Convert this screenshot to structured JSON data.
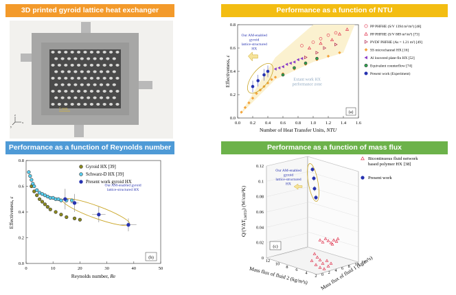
{
  "colors": {
    "orange": "#f39a2b",
    "yellow": "#f3bd12",
    "blue": "#4e9ad6",
    "green": "#6cb24a",
    "present": "#2632b0",
    "zone": "#fbf1cf"
  },
  "photo": {
    "title": "3D printed gyroid lattice heat exchanger",
    "scale_label": "5 mm",
    "axis_x": "x",
    "axis_y": "y",
    "axis_z": "z"
  },
  "chart_data": [
    {
      "type": "scatter",
      "title": "Performance as a function of NTU",
      "xlabel": "Number of Heat Transfer Units,",
      "xlabel_italic": "NTU",
      "ylabel": "Effectiveness,",
      "ylabel_italic": "ε",
      "xlim": [
        0.0,
        1.6
      ],
      "ylim": [
        0.0,
        0.8
      ],
      "xticks": [
        "0.0",
        "0.2",
        "0.4",
        "0.6",
        "0.8",
        "1.0",
        "1.2",
        "1.4",
        "1.6"
      ],
      "yticks": [
        "0.0",
        "0.2",
        "0.4",
        "0.6",
        "0.8"
      ],
      "panel_label": "(a)",
      "annotation": "Our AM-enabled gyroid lattice-structured HX",
      "zone_label": "Extant work HX performance zone",
      "legend_position": "right",
      "series": [
        {
          "name": "PP PHFHE (S/V 1394 m²/m³) [48]",
          "marker": "circle-open",
          "color": "#e0334e",
          "x": [
            0.85,
            1.0,
            1.1,
            1.2,
            1.3
          ],
          "y": [
            0.62,
            0.65,
            0.68,
            0.71,
            0.73
          ]
        },
        {
          "name": "PP PHFHE (S/V 889 m²/m³) [73]",
          "marker": "triangle-open",
          "color": "#e0334e",
          "x": [
            0.95,
            1.1,
            1.25,
            1.35,
            1.45
          ],
          "y": [
            0.6,
            0.64,
            0.67,
            0.72,
            0.76
          ]
        },
        {
          "name": "PVDF PHFHE (As = 1.21 m²) [49]",
          "marker": "triangle-right",
          "color": "#b0234e",
          "x": [
            0.9,
            1.05,
            1.15,
            1.3
          ],
          "y": [
            0.52,
            0.56,
            0.6,
            0.63
          ]
        },
        {
          "name": "SS microchannel HX [16]",
          "marker": "diamond",
          "color": "#f3a33c",
          "x": [
            0.05,
            0.1,
            0.15,
            0.2,
            0.25,
            0.3,
            0.35,
            0.4,
            0.45,
            0.5,
            0.6,
            0.75,
            0.9,
            1.05,
            1.2,
            1.35
          ],
          "y": [
            0.05,
            0.09,
            0.13,
            0.17,
            0.21,
            0.24,
            0.27,
            0.3,
            0.33,
            0.35,
            0.38,
            0.42,
            0.46,
            0.5,
            0.53,
            0.56
          ]
        },
        {
          "name": "Al louvered plate-fin HX [52]",
          "marker": "triangle-left",
          "color": "#8a3cc8",
          "x": [
            0.5,
            0.55,
            0.6,
            0.65,
            0.7,
            0.75,
            0.8,
            0.85
          ],
          "y": [
            0.42,
            0.43,
            0.44,
            0.46,
            0.47,
            0.48,
            0.5,
            0.51
          ]
        },
        {
          "name": "Equivalent counterflow [74]",
          "marker": "circle",
          "color": "#2ea44f",
          "x": [
            0.6,
            0.75,
            0.9,
            1.05
          ],
          "y": [
            0.37,
            0.43,
            0.47,
            0.51
          ]
        },
        {
          "name": "Present work (Experiment)",
          "marker": "circle-half",
          "color": "#2632b0",
          "x": [
            0.2,
            0.27,
            0.35,
            0.4
          ],
          "y": [
            0.27,
            0.32,
            0.37,
            0.4
          ]
        }
      ]
    },
    {
      "type": "scatter",
      "title": "Performance as a function of Reynolds number",
      "xlabel": "Reynolds number,",
      "xlabel_italic": "Re",
      "ylabel": "Effectiveness,",
      "ylabel_italic": "ε",
      "xlim": [
        0,
        50
      ],
      "ylim": [
        0.0,
        0.8
      ],
      "xticks": [
        "0",
        "10",
        "20",
        "30",
        "40",
        "50"
      ],
      "yticks": [
        "0.0",
        "0.2",
        "0.4",
        "0.6",
        "0.8"
      ],
      "panel_label": "(b)",
      "annotation": "Our AM-enabled gyroid lattice-structured HX",
      "legend_position": "top-right",
      "series": [
        {
          "name": "Gyroid HX [39]",
          "marker": "circle",
          "color": "#8c8a1e",
          "x": [
            2,
            3,
            4,
            5,
            6,
            7,
            8,
            9,
            11,
            13,
            15,
            18,
            20
          ],
          "y": [
            0.6,
            0.56,
            0.53,
            0.5,
            0.48,
            0.46,
            0.44,
            0.42,
            0.4,
            0.38,
            0.36,
            0.35,
            0.34
          ]
        },
        {
          "name": "Schwarz-D HX [39]",
          "marker": "circle",
          "color": "#5ad0f0",
          "x": [
            1,
            1.5,
            2,
            2.5,
            3,
            4,
            5,
            6,
            7,
            8,
            9,
            10,
            11,
            12,
            13,
            15,
            17
          ],
          "y": [
            0.71,
            0.68,
            0.65,
            0.62,
            0.6,
            0.57,
            0.55,
            0.54,
            0.53,
            0.52,
            0.51,
            0.51,
            0.5,
            0.5,
            0.49,
            0.49,
            0.49
          ]
        },
        {
          "name": "Present work gyroid HX",
          "marker": "circle-half",
          "color": "#2632b0",
          "x": [
            14.5,
            18,
            27,
            38
          ],
          "y": [
            0.5,
            0.47,
            0.38,
            0.3
          ],
          "yerr": [
            0.08,
            0.07,
            0.06,
            0.05
          ],
          "xerr": [
            1.5,
            1.5,
            2.5,
            3
          ]
        }
      ]
    },
    {
      "type": "scatter3d",
      "title": "Performance as a function of mass flux",
      "xlabel": "Mass flux of fluid 1 (kg/m²s)",
      "ylabel": "Mass flux of fluid 2 (kg/m²s)",
      "zlabel": "Q/(VΔT",
      "zlabel_sub": "LMTD",
      "zlabel_end": ") (W/cm³K)",
      "zlim": [
        0,
        0.12
      ],
      "zticks": [
        "0",
        "0.02",
        "0.04",
        "0.06",
        "0.08",
        "0.1",
        "0.12"
      ],
      "x1ticks": [
        "0",
        "2",
        "4",
        "6",
        "8",
        "10",
        "12"
      ],
      "x2ticks": [
        "12",
        "10",
        "8",
        "6",
        "4",
        "2"
      ],
      "panel_label": "(c)",
      "annotation": "Our AM-enabled gyroid lattice-structured HX",
      "legend_position": "top-right",
      "series": [
        {
          "name": "Bicontinuous fluid network based polymer HX [38]",
          "marker": "triangle-open",
          "color": "#e0334e"
        },
        {
          "name": "Present work",
          "marker": "circle-half",
          "color": "#2632b0"
        }
      ]
    }
  ]
}
